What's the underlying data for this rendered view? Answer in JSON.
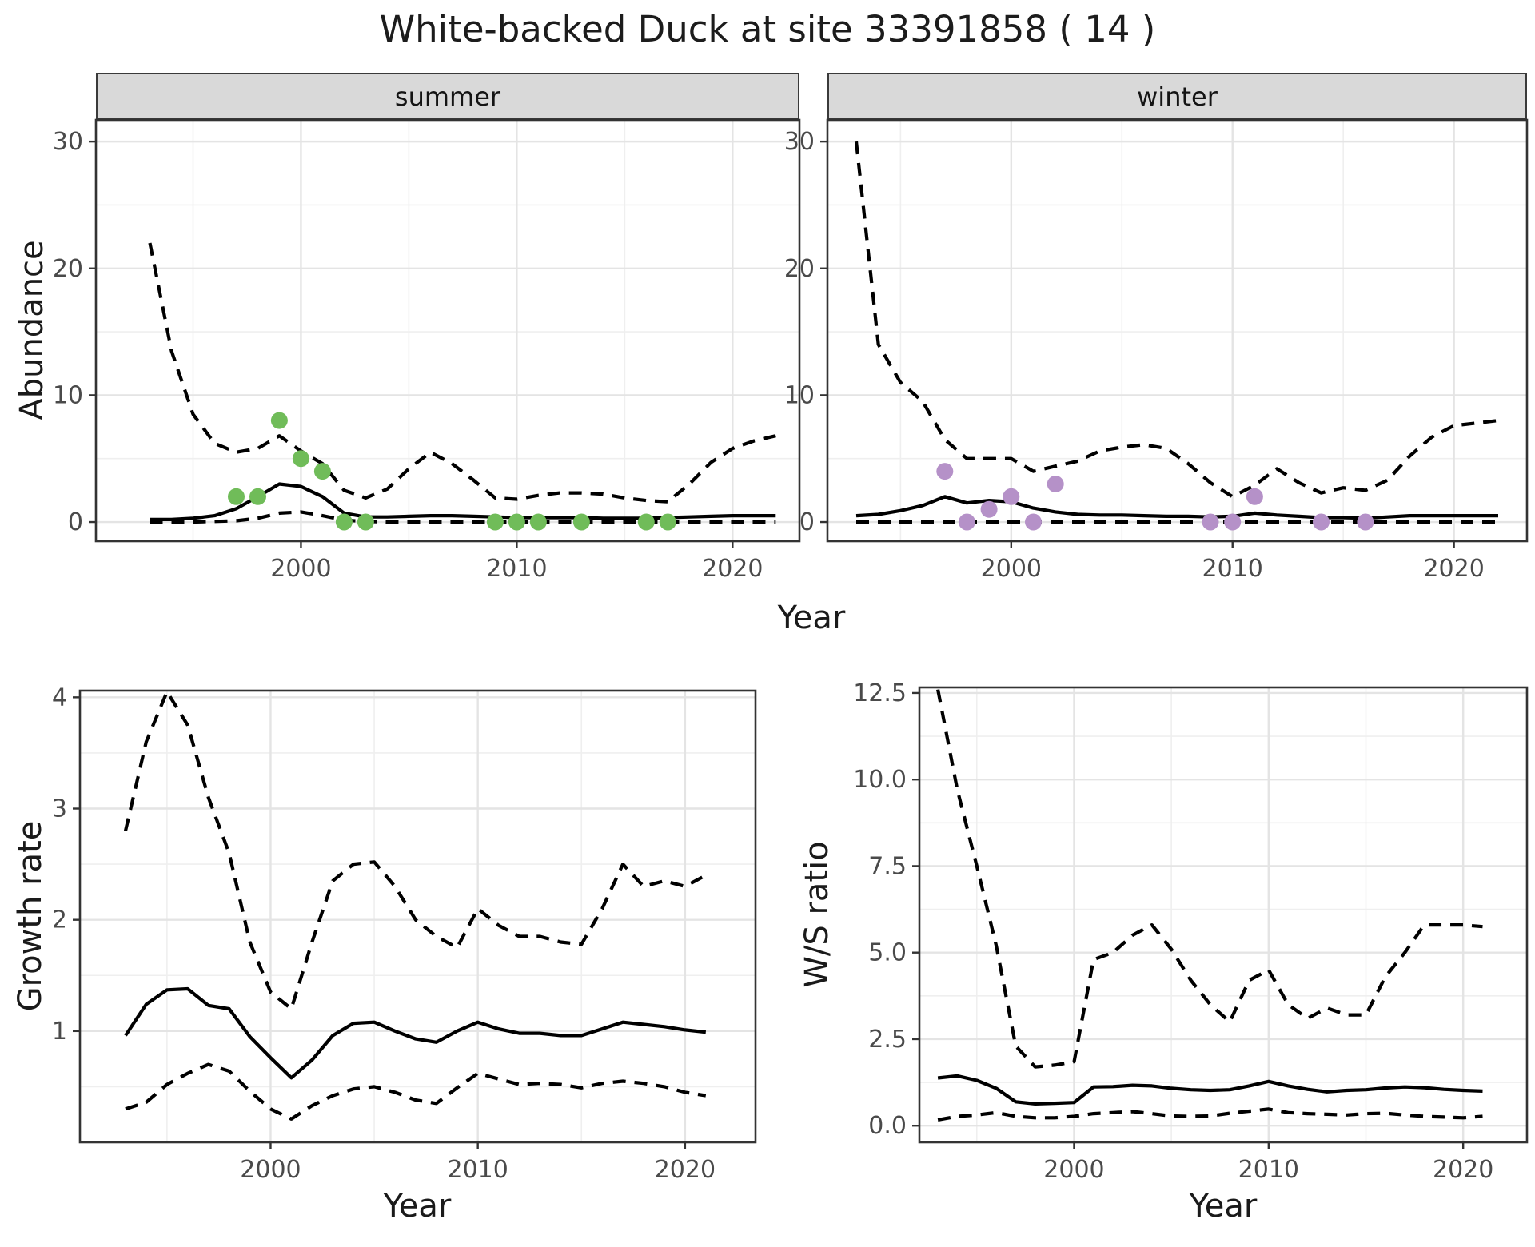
{
  "title": "White-backed Duck at site 33391858 ( 14 )",
  "facets": {
    "summer": "summer",
    "winter": "winter"
  },
  "axis_labels": {
    "year": "Year",
    "abundance": "Abundance",
    "growth": "Growth rate",
    "ws": "W/S ratio"
  },
  "colors": {
    "summer_points": "#70bc59",
    "winter_points": "#b591c8",
    "line": "#000000",
    "grid_major": "#e4e4e4",
    "grid_minor": "#efefef",
    "panel_border": "#333333",
    "strip_fill": "#d9d9d9",
    "tick_text": "#4a4a4a"
  },
  "chart_data": [
    {
      "id": "abundance-summer",
      "type": "line",
      "facet": "summer",
      "xlabel": "Year",
      "ylabel": "Abundance",
      "x": [
        1993,
        1994,
        1995,
        1996,
        1997,
        1998,
        1999,
        2000,
        2001,
        2002,
        2003,
        2004,
        2005,
        2006,
        2007,
        2008,
        2009,
        2010,
        2011,
        2012,
        2013,
        2014,
        2015,
        2016,
        2017,
        2018,
        2019,
        2020,
        2021,
        2022
      ],
      "series": [
        {
          "name": "mean",
          "style": "solid",
          "values": [
            0.2,
            0.2,
            0.3,
            0.5,
            1.05,
            2.0,
            3.0,
            2.8,
            2.0,
            0.7,
            0.4,
            0.4,
            0.45,
            0.5,
            0.5,
            0.45,
            0.4,
            0.35,
            0.35,
            0.35,
            0.35,
            0.3,
            0.3,
            0.3,
            0.35,
            0.4,
            0.45,
            0.5,
            0.5,
            0.5
          ]
        },
        {
          "name": "ci-upper",
          "style": "dashed",
          "values": [
            22,
            13.5,
            8.5,
            6.2,
            5.5,
            5.8,
            6.8,
            5.6,
            4.6,
            2.5,
            1.9,
            2.6,
            4.2,
            5.5,
            4.6,
            3.3,
            1.9,
            1.8,
            2.1,
            2.3,
            2.3,
            2.2,
            1.9,
            1.7,
            1.6,
            3.0,
            4.7,
            5.8,
            6.4,
            6.8
          ]
        },
        {
          "name": "ci-lower",
          "style": "dashed",
          "values": [
            0,
            0,
            0,
            0.05,
            0.1,
            0.3,
            0.7,
            0.8,
            0.5,
            0.15,
            0.05,
            0,
            0,
            0,
            0,
            0,
            0,
            0,
            0,
            0,
            0,
            0,
            0,
            0,
            0,
            0,
            0,
            0,
            0,
            0
          ]
        }
      ],
      "points": {
        "name": "observed-counts",
        "color_key": "summer_points",
        "years": [
          1997,
          1998,
          1999,
          2000,
          2001,
          2002,
          2003,
          2009,
          2010,
          2011,
          2013,
          2016,
          2017
        ],
        "values": [
          2,
          2,
          8,
          5,
          4,
          0,
          0,
          0,
          0,
          0,
          0,
          0,
          0
        ]
      },
      "x_ticks": [
        2000,
        2010,
        2020
      ],
      "x_minor": [
        1995,
        2005,
        2015
      ],
      "y_ticks": [
        0,
        10,
        20,
        30
      ],
      "y_tick_labels": [
        "0",
        "10",
        "20",
        "30"
      ],
      "y_minor": [
        5,
        15,
        25
      ],
      "xlim": [
        1990.5,
        2023.1
      ],
      "ylim": [
        -1.51,
        31.71
      ]
    },
    {
      "id": "abundance-winter",
      "type": "line",
      "facet": "winter",
      "xlabel": "Year",
      "ylabel": "Abundance",
      "x": [
        1993,
        1994,
        1995,
        1996,
        1997,
        1998,
        1999,
        2000,
        2001,
        2002,
        2003,
        2004,
        2005,
        2006,
        2007,
        2008,
        2009,
        2010,
        2011,
        2012,
        2013,
        2014,
        2015,
        2016,
        2017,
        2018,
        2019,
        2020,
        2021,
        2022
      ],
      "series": [
        {
          "name": "mean",
          "style": "solid",
          "values": [
            0.5,
            0.6,
            0.9,
            1.3,
            2.0,
            1.5,
            1.7,
            1.6,
            1.1,
            0.8,
            0.6,
            0.55,
            0.55,
            0.5,
            0.45,
            0.45,
            0.4,
            0.45,
            0.7,
            0.55,
            0.45,
            0.35,
            0.35,
            0.3,
            0.4,
            0.5,
            0.5,
            0.5,
            0.5,
            0.5
          ]
        },
        {
          "name": "ci-upper",
          "style": "dashed",
          "values": [
            30,
            14,
            11,
            9.5,
            6.5,
            5.0,
            5.0,
            5.0,
            4.0,
            4.4,
            4.8,
            5.6,
            5.9,
            6.1,
            5.8,
            4.6,
            3.1,
            2.0,
            2.9,
            4.2,
            3.1,
            2.3,
            2.7,
            2.5,
            3.3,
            5.2,
            6.7,
            7.6,
            7.8,
            8.0
          ]
        },
        {
          "name": "ci-lower",
          "style": "dashed",
          "values": [
            0,
            0,
            0,
            0,
            0,
            0,
            0,
            0,
            0,
            0,
            0,
            0,
            0,
            0,
            0,
            0,
            0,
            0,
            0,
            0,
            0,
            0,
            0,
            0,
            0,
            0,
            0,
            0,
            0,
            0
          ]
        }
      ],
      "points": {
        "name": "observed-counts",
        "color_key": "winter_points",
        "years": [
          1997,
          1998,
          1999,
          2000,
          2001,
          2002,
          2009,
          2010,
          2011,
          2014,
          2016
        ],
        "values": [
          4,
          0,
          1,
          2,
          0,
          3,
          0,
          0,
          2,
          0,
          0
        ]
      },
      "x_ticks": [
        2000,
        2010,
        2020
      ],
      "x_minor": [
        1995,
        2005,
        2015
      ],
      "y_ticks": [
        0,
        10,
        20,
        30
      ],
      "y_tick_labels": [
        "0",
        "10",
        "20",
        "30"
      ],
      "y_minor": [
        5,
        15,
        25
      ],
      "xlim": [
        1991.7,
        2023.3
      ],
      "ylim": [
        -1.51,
        31.71
      ]
    },
    {
      "id": "growth-rate",
      "type": "line",
      "facet": "",
      "xlabel": "Year",
      "ylabel": "Growth rate",
      "x": [
        1993,
        1994,
        1995,
        1996,
        1997,
        1998,
        1999,
        2000,
        2001,
        2002,
        2003,
        2004,
        2005,
        2006,
        2007,
        2008,
        2009,
        2010,
        2011,
        2012,
        2013,
        2014,
        2015,
        2016,
        2017,
        2018,
        2019,
        2020,
        2021
      ],
      "series": [
        {
          "name": "mean",
          "style": "solid",
          "values": [
            0.96,
            1.24,
            1.37,
            1.38,
            1.23,
            1.2,
            0.95,
            0.76,
            0.58,
            0.74,
            0.96,
            1.07,
            1.08,
            1.0,
            0.93,
            0.9,
            1.0,
            1.08,
            1.02,
            0.98,
            0.98,
            0.96,
            0.96,
            1.02,
            1.08,
            1.06,
            1.04,
            1.01,
            0.99
          ]
        },
        {
          "name": "ci-upper",
          "style": "dashed",
          "values": [
            2.8,
            3.6,
            4.05,
            3.75,
            3.1,
            2.6,
            1.8,
            1.35,
            1.2,
            1.8,
            2.35,
            2.5,
            2.52,
            2.3,
            2.0,
            1.85,
            1.75,
            2.1,
            1.95,
            1.85,
            1.85,
            1.8,
            1.78,
            2.1,
            2.5,
            2.3,
            2.35,
            2.3,
            2.4
          ]
        },
        {
          "name": "ci-lower",
          "style": "dashed",
          "values": [
            0.3,
            0.36,
            0.52,
            0.62,
            0.7,
            0.64,
            0.46,
            0.3,
            0.21,
            0.33,
            0.42,
            0.48,
            0.5,
            0.45,
            0.38,
            0.35,
            0.49,
            0.62,
            0.57,
            0.52,
            0.53,
            0.52,
            0.49,
            0.53,
            0.55,
            0.53,
            0.5,
            0.45,
            0.42
          ]
        }
      ],
      "points": null,
      "x_ticks": [
        2000,
        2010,
        2020
      ],
      "x_minor": [
        1995,
        2005,
        2015
      ],
      "y_ticks": [
        1,
        2,
        3,
        4
      ],
      "y_tick_labels": [
        "1",
        "2",
        "3",
        "4"
      ],
      "y_minor": [
        0.5,
        1.5,
        2.5,
        3.5
      ],
      "xlim": [
        1990.8,
        2023.4
      ],
      "ylim": [
        0.0,
        4.06
      ]
    },
    {
      "id": "ws-ratio",
      "type": "line",
      "facet": "",
      "xlabel": "Year",
      "ylabel": "W/S ratio",
      "x": [
        1993,
        1994,
        1995,
        1996,
        1997,
        1998,
        1999,
        2000,
        2001,
        2002,
        2003,
        2004,
        2005,
        2006,
        2007,
        2008,
        2009,
        2010,
        2011,
        2012,
        2013,
        2014,
        2015,
        2016,
        2017,
        2018,
        2019,
        2020,
        2021
      ],
      "series": [
        {
          "name": "mean",
          "style": "solid",
          "values": [
            1.38,
            1.44,
            1.31,
            1.08,
            0.69,
            0.63,
            0.65,
            0.67,
            1.12,
            1.13,
            1.17,
            1.15,
            1.08,
            1.04,
            1.02,
            1.04,
            1.15,
            1.28,
            1.15,
            1.05,
            0.98,
            1.02,
            1.04,
            1.09,
            1.12,
            1.1,
            1.05,
            1.02,
            1.0
          ]
        },
        {
          "name": "ci-upper",
          "style": "dashed",
          "values": [
            12.6,
            9.7,
            7.5,
            5.2,
            2.3,
            1.7,
            1.75,
            1.85,
            4.8,
            5.0,
            5.5,
            5.8,
            5.1,
            4.2,
            3.5,
            3.0,
            4.2,
            4.5,
            3.5,
            3.1,
            3.4,
            3.2,
            3.2,
            4.3,
            5.0,
            5.8,
            5.8,
            5.8,
            5.75
          ]
        },
        {
          "name": "ci-lower",
          "style": "dashed",
          "values": [
            0.17,
            0.27,
            0.31,
            0.38,
            0.27,
            0.23,
            0.23,
            0.27,
            0.35,
            0.38,
            0.41,
            0.35,
            0.28,
            0.27,
            0.28,
            0.36,
            0.42,
            0.48,
            0.38,
            0.35,
            0.33,
            0.31,
            0.35,
            0.36,
            0.31,
            0.27,
            0.25,
            0.23,
            0.27
          ]
        }
      ],
      "points": null,
      "x_ticks": [
        2000,
        2010,
        2020
      ],
      "x_minor": [
        1995,
        2005,
        2015
      ],
      "y_ticks": [
        0,
        2.5,
        5,
        7.5,
        10,
        12.5
      ],
      "y_tick_labels": [
        "0.0",
        "2.5",
        "5.0",
        "7.5",
        "10.0",
        "12.5"
      ],
      "y_minor": [
        1.25,
        3.75,
        6.25,
        8.75,
        11.25
      ],
      "xlim": [
        1992.05,
        2023.28
      ],
      "ylim": [
        -0.48,
        12.66
      ]
    }
  ]
}
